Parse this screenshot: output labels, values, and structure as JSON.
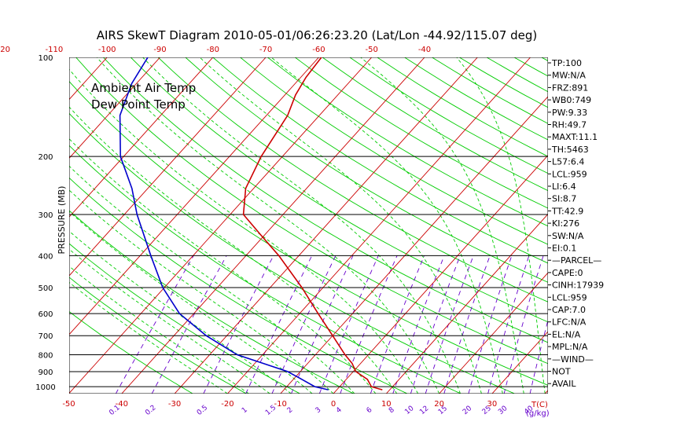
{
  "title": "AIRS SkewT Diagram 2010-05-01/06:26:23.20 (Lat/Lon -44.92/115.07 deg)",
  "colors": {
    "ambient": "#cc0000",
    "dewpoint": "#0000cc",
    "isotherm": "#cc0000",
    "dry_adiabat": "#00cc00",
    "moist_adiabat": "#00cc00",
    "mixing_ratio": "#6600cc",
    "isobar": "#000000"
  },
  "legend": {
    "ambient": "Ambient Air Temp",
    "dewpoint": "Dew Point Temp"
  },
  "chart_data": {
    "type": "line",
    "title": "AIRS SkewT Diagram 2010-05-01/06:26:23.20 (Lat/Lon -44.92/115.07 deg)",
    "ylabel": "PRESSURE (MB)",
    "xlabel": "T(C)",
    "y_scale": "log",
    "ylim": [
      1050,
      100
    ],
    "y_ticks": [
      100,
      200,
      300,
      400,
      500,
      600,
      700,
      800,
      900,
      1000
    ],
    "x_ticks_bottom": [
      -50,
      -40,
      -30,
      -20,
      -10,
      0,
      10,
      20,
      30
    ],
    "x_ticks_top": [
      -120,
      -110,
      -100,
      -90,
      -80,
      -70,
      -60,
      -50,
      -40
    ],
    "mixing_ratio_label": "(g/kg)",
    "mixing_ratio_ticks": [
      "0.1",
      "0.2",
      "0.5",
      "1",
      "1.5",
      "2",
      "3",
      "4",
      "6",
      "8",
      "10",
      "12",
      "15",
      "20",
      "25",
      "30",
      "40"
    ],
    "series": [
      {
        "name": "Ambient Air Temp",
        "points": [
          {
            "p": 1022,
            "t": 8.6
          },
          {
            "p": 1000,
            "t": 6.0
          },
          {
            "p": 950,
            "t": 4.0
          },
          {
            "p": 900,
            "t": 0.5
          },
          {
            "p": 850,
            "t": -1.6
          },
          {
            "p": 800,
            "t": -4.4
          },
          {
            "p": 700,
            "t": -10.0
          },
          {
            "p": 600,
            "t": -16.5
          },
          {
            "p": 500,
            "t": -24.0
          },
          {
            "p": 400,
            "t": -33.8
          },
          {
            "p": 350,
            "t": -40.2
          },
          {
            "p": 300,
            "t": -47.5
          },
          {
            "p": 250,
            "t": -51.5
          },
          {
            "p": 200,
            "t": -54.0
          },
          {
            "p": 150,
            "t": -56.0
          },
          {
            "p": 130,
            "t": -58.0
          },
          {
            "p": 115,
            "t": -59.0
          },
          {
            "p": 100,
            "t": -59.5
          }
        ]
      },
      {
        "name": "Dew Point Temp",
        "points": [
          {
            "p": 1022,
            "t": -1.6
          },
          {
            "p": 1000,
            "t": -4.7
          },
          {
            "p": 950,
            "t": -8.4
          },
          {
            "p": 900,
            "t": -12.4
          },
          {
            "p": 850,
            "t": -18.4
          },
          {
            "p": 800,
            "t": -24.8
          },
          {
            "p": 700,
            "t": -33.9
          },
          {
            "p": 600,
            "t": -42.7
          },
          {
            "p": 500,
            "t": -50.3
          },
          {
            "p": 400,
            "t": -58.0
          },
          {
            "p": 300,
            "t": -67.6
          },
          {
            "p": 250,
            "t": -73.0
          },
          {
            "p": 200,
            "t": -80.6
          },
          {
            "p": 150,
            "t": -87.7
          },
          {
            "p": 120,
            "t": -90.9
          },
          {
            "p": 100,
            "t": -92.3
          }
        ]
      }
    ]
  },
  "indices": [
    "TP:100",
    "MW:N/A",
    "FRZ:891",
    "WB0:749",
    "PW:9.33",
    "RH:49.7",
    "MAXT:11.1",
    "TH:5463",
    "L57:6.4",
    "LCL:959",
    "LI:6.4",
    "SI:8.7",
    "TT:42.9",
    "KI:276",
    "SW:N/A",
    "EI:0.1",
    "—PARCEL—",
    "CAPE:0",
    "CINH:17939",
    "LCL:959",
    "CAP:7.0",
    "LFC:N/A",
    "EL:N/A",
    "MPL:N/A",
    "—WIND—",
    "NOT",
    "AVAIL"
  ]
}
